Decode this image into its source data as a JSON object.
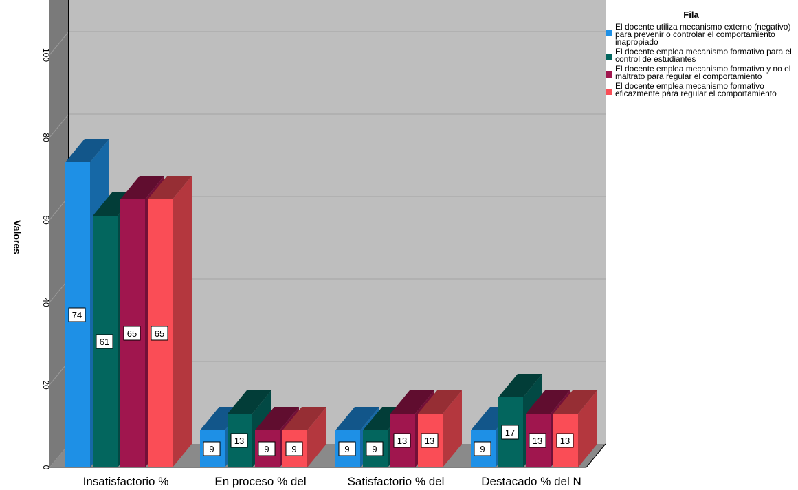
{
  "chart_data": {
    "type": "bar",
    "title": "",
    "ylabel": "Valores",
    "xlabel": "",
    "ylim": [
      0,
      110
    ],
    "yticks": [
      0,
      20,
      40,
      60,
      80,
      100
    ],
    "grid": true,
    "legend_position": "right",
    "legend_title": "Fila",
    "categories": [
      "Insatisfactorio %",
      "En proceso % del",
      "Satisfactorio % del",
      "Destacado % del N"
    ],
    "series": [
      {
        "name": "El docente utiliza mecanismo externo (negativo) para prevenir o controlar el comportamiento inapropiado",
        "values": [
          74,
          9,
          9,
          9
        ],
        "color": "#1e90e6"
      },
      {
        "name": "El docente emplea mecanismo formativo para el control de estudiantes",
        "values": [
          61,
          13,
          9,
          17
        ],
        "color": "#03665e"
      },
      {
        "name": "El docente emplea mecanismo formativo y no el maltrato para regular el comportamiento",
        "values": [
          65,
          9,
          13,
          13
        ],
        "color": "#a0164e"
      },
      {
        "name": "El docente emplea mecanismo formativo eficazmente para regular el comportamiento",
        "values": [
          65,
          9,
          13,
          13
        ],
        "color": "#fa4d56"
      }
    ]
  }
}
